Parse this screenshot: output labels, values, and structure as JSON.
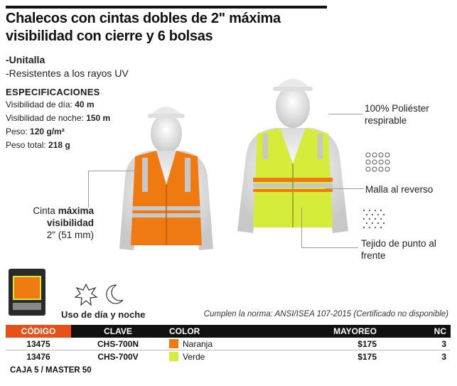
{
  "title": "Chalecos con cintas dobles de 2\" máxima visibilidad con cierre y 6 bolsas",
  "bullets": [
    "-Unitalla",
    "-Resistentes a los rayos UV"
  ],
  "specs": {
    "heading": "ESPECIFICACIONES",
    "items": [
      {
        "label": "Visibilidad de día: ",
        "value": "40 m"
      },
      {
        "label": "Visibilidad de noche: ",
        "value": "150 m"
      },
      {
        "label": "Peso: ",
        "value": "120 g/m²"
      },
      {
        "label": "Peso total: ",
        "value": "218 g"
      }
    ]
  },
  "callouts": {
    "material": "100% Poliéster respirable",
    "malla": "Malla al reverso",
    "tejido": "Tejido de punto al frente",
    "cinta_pre": "Cinta ",
    "cinta_bold": "máxima visibilidad",
    "cinta_size": "2\" (51 mm)"
  },
  "use_label": "Uso de día y noche",
  "norm": "Cumplen la norma: ANSI/ISEA 107-2015 (Certificado no disponible)",
  "table": {
    "headers": [
      "CÓDIGO",
      "CLAVE",
      "COLOR",
      "MAYOREO",
      "NC"
    ],
    "rows": [
      {
        "code": "13475",
        "clave": "CHS-700N",
        "color": "Naranja",
        "swatch": "#f07a12",
        "price": "$175",
        "nc": "3"
      },
      {
        "code": "13476",
        "clave": "CHS-700V",
        "color": "Verde",
        "swatch": "#d6ec3a",
        "price": "$175",
        "nc": "3"
      }
    ]
  },
  "caja": "CAJA 5 / MASTER 50",
  "colors": {
    "accent": "#e8501a",
    "orange_vest": "#f07a12",
    "yellow_vest": "#d6ec3a"
  }
}
